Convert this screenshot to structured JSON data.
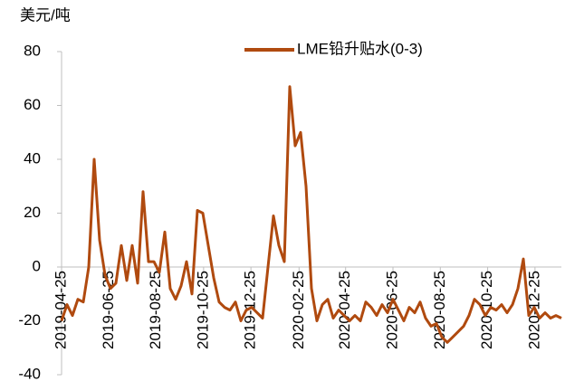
{
  "chart_data": {
    "type": "line",
    "y_axis_label": "美元/吨",
    "x": [
      "2019-04-25",
      "2019-05-02",
      "2019-05-09",
      "2019-05-16",
      "2019-05-23",
      "2019-05-30",
      "2019-06-06",
      "2019-06-13",
      "2019-06-20",
      "2019-06-27",
      "2019-07-04",
      "2019-07-11",
      "2019-07-18",
      "2019-07-25",
      "2019-08-01",
      "2019-08-08",
      "2019-08-15",
      "2019-08-22",
      "2019-08-29",
      "2019-09-05",
      "2019-09-12",
      "2019-09-19",
      "2019-09-26",
      "2019-10-03",
      "2019-10-10",
      "2019-10-17",
      "2019-10-24",
      "2019-10-31",
      "2019-11-07",
      "2019-11-14",
      "2019-11-21",
      "2019-11-28",
      "2019-12-05",
      "2019-12-12",
      "2019-12-19",
      "2019-12-26",
      "2020-01-02",
      "2020-01-09",
      "2020-01-16",
      "2020-01-23",
      "2020-01-30",
      "2020-02-06",
      "2020-02-13",
      "2020-02-20",
      "2020-02-27",
      "2020-03-05",
      "2020-03-12",
      "2020-03-19",
      "2020-03-26",
      "2020-04-02",
      "2020-04-09",
      "2020-04-16",
      "2020-04-23",
      "2020-04-30",
      "2020-05-07",
      "2020-05-14",
      "2020-05-21",
      "2020-05-28",
      "2020-06-04",
      "2020-06-11",
      "2020-06-18",
      "2020-06-25",
      "2020-07-02",
      "2020-07-09",
      "2020-07-16",
      "2020-07-23",
      "2020-07-30",
      "2020-08-06",
      "2020-08-13",
      "2020-08-20",
      "2020-08-27",
      "2020-09-03",
      "2020-09-10",
      "2020-09-17",
      "2020-09-24",
      "2020-10-01",
      "2020-10-08",
      "2020-10-15",
      "2020-10-22",
      "2020-10-29",
      "2020-11-05",
      "2020-11-12",
      "2020-11-19",
      "2020-11-26",
      "2020-12-03",
      "2020-12-10",
      "2020-12-17",
      "2020-12-24",
      "2020-12-31",
      "2021-01-07",
      "2021-01-14",
      "2021-01-21",
      "2021-01-28"
    ],
    "series": [
      {
        "name": "LME铅升贴水(0-3)",
        "color": "#b04a0f",
        "values": [
          -20,
          -14,
          -18,
          -12,
          -13,
          0,
          40,
          10,
          -3,
          -8,
          -6,
          8,
          -5,
          8,
          -6,
          28,
          2,
          2,
          -2,
          13,
          -8,
          -12,
          -7,
          2,
          -10,
          21,
          20,
          8,
          -4,
          -13,
          -15,
          -16,
          -13,
          -20,
          -16,
          -15,
          -17,
          -19,
          0,
          19,
          8,
          2,
          67,
          45,
          50,
          30,
          -8,
          -20,
          -14,
          -12,
          -19,
          -16,
          -18,
          -20,
          -18,
          -20,
          -13,
          -15,
          -18,
          -14,
          -17,
          -12,
          -16,
          -20,
          -15,
          -17,
          -13,
          -19,
          -22,
          -21,
          -26,
          -28,
          -26,
          -24,
          -22,
          -18,
          -12,
          -14,
          -18,
          -15,
          -16,
          -14,
          -17,
          -14,
          -8,
          3,
          -18,
          -15,
          -19,
          -17,
          -19,
          -18,
          -19
        ]
      }
    ],
    "xlim": [
      "2019-04-25",
      "2021-01-28"
    ],
    "xticks": [
      "2019-04-25",
      "2019-06-25",
      "2019-08-25",
      "2019-10-25",
      "2019-12-25",
      "2020-02-25",
      "2020-04-25",
      "2020-06-25",
      "2020-08-25",
      "2020-10-25",
      "2020-12-25"
    ],
    "ylim": [
      -40,
      80
    ],
    "yticks": [
      -40,
      -20,
      0,
      20,
      40,
      60,
      80
    ],
    "grid": false,
    "legend": "top"
  }
}
